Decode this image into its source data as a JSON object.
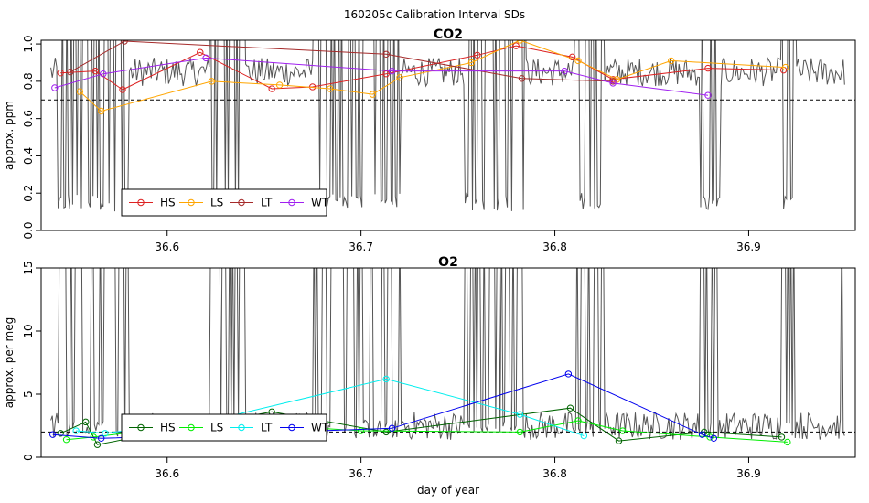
{
  "figure_title": "160205c   Calibration Interval SDs",
  "chart_data": [
    {
      "type": "line",
      "title": "CO2",
      "xlabel": "",
      "ylabel": "approx. ppm",
      "xlim": [
        36.535,
        36.955
      ],
      "ylim": [
        0.0,
        1.02
      ],
      "xticks": [
        "36.6",
        "36.7",
        "36.8",
        "36.9"
      ],
      "yticks": [
        "0.0",
        "0.2",
        "0.4",
        "0.6",
        "0.8",
        "1.0"
      ],
      "reference_line": 0.7,
      "background_trace": {
        "name": "raw",
        "color": "#555555",
        "x_range": [
          36.54,
          36.95
        ],
        "baseline": 0.85,
        "spike_clusters": [
          [
            36.543,
            36.58
          ],
          [
            36.622,
            36.64
          ],
          [
            36.675,
            36.72
          ],
          [
            36.753,
            36.785
          ],
          [
            36.81,
            36.825
          ],
          [
            36.875,
            36.885
          ],
          [
            36.917,
            36.924
          ]
        ]
      },
      "series": [
        {
          "name": "HS",
          "color": "#dd2222",
          "x": [
            36.545,
            36.563,
            36.577,
            36.617,
            36.654,
            36.675,
            36.713,
            36.76,
            36.78,
            36.809,
            36.83,
            36.879,
            36.918
          ],
          "y": [
            0.845,
            0.855,
            0.755,
            0.955,
            0.76,
            0.77,
            0.84,
            0.94,
            0.99,
            0.93,
            0.81,
            0.87,
            0.86
          ]
        },
        {
          "name": "LS",
          "color": "#ffa500",
          "x": [
            36.555,
            36.566,
            36.623,
            36.658,
            36.684,
            36.706,
            36.72,
            36.757,
            36.782,
            36.812,
            36.832,
            36.86,
            36.919
          ],
          "y": [
            0.745,
            0.64,
            0.8,
            0.78,
            0.76,
            0.73,
            0.82,
            0.9,
            1.02,
            0.91,
            0.81,
            0.91,
            0.875
          ]
        },
        {
          "name": "LT",
          "color": "#a52a2a",
          "x": [
            36.55,
            36.578,
            36.713,
            36.783,
            36.83
          ],
          "y": [
            0.85,
            1.015,
            0.945,
            0.815,
            0.8
          ]
        },
        {
          "name": "WT",
          "color": "#a020f0",
          "x": [
            36.542,
            36.567,
            36.62,
            36.716,
            36.805,
            36.83,
            36.879
          ],
          "y": [
            0.765,
            0.84,
            0.925,
            0.855,
            0.855,
            0.79,
            0.725
          ]
        }
      ],
      "legend": {
        "position": "bottom-left",
        "entries": [
          "HS",
          "LS",
          "LT",
          "WT"
        ]
      }
    },
    {
      "type": "line",
      "title": "O2",
      "xlabel": "day of year",
      "ylabel": "approx. per meg",
      "xlim": [
        36.535,
        36.955
      ],
      "ylim": [
        0,
        15
      ],
      "xticks": [
        "36.6",
        "36.7",
        "36.8",
        "36.9"
      ],
      "yticks": [
        "0",
        "5",
        "10",
        "15"
      ],
      "reference_line": 2,
      "background_trace": {
        "name": "raw",
        "color": "#555555",
        "x_range": [
          36.54,
          36.95
        ],
        "baseline": 2.5,
        "spike_clusters": [
          [
            36.543,
            36.58
          ],
          [
            36.622,
            36.64
          ],
          [
            36.675,
            36.72
          ],
          [
            36.753,
            36.785
          ],
          [
            36.81,
            36.825
          ],
          [
            36.875,
            36.885
          ],
          [
            36.917,
            36.924
          ],
          [
            36.947,
            36.952
          ]
        ]
      },
      "series": [
        {
          "name": "HS",
          "color": "#006400",
          "x": [
            36.545,
            36.558,
            36.564,
            36.625,
            36.654,
            36.713,
            36.808,
            36.833,
            36.877,
            36.917
          ],
          "y": [
            1.9,
            2.8,
            1.0,
            2.8,
            3.6,
            2.0,
            3.9,
            1.3,
            2.0,
            1.6
          ]
        },
        {
          "name": "LS",
          "color": "#00ee00",
          "x": [
            36.548,
            36.562,
            36.625,
            36.7,
            36.782,
            36.812,
            36.835,
            36.88,
            36.92
          ],
          "y": [
            1.4,
            1.6,
            2.8,
            2.1,
            2.0,
            2.9,
            2.1,
            1.6,
            1.2
          ]
        },
        {
          "name": "LT",
          "color": "#00eeee",
          "x": [
            36.553,
            36.568,
            36.625,
            36.713,
            36.782,
            36.815
          ],
          "y": [
            2.1,
            1.9,
            3.0,
            6.2,
            3.4,
            1.7
          ]
        },
        {
          "name": "WT",
          "color": "#0000ee",
          "x": [
            36.541,
            36.566,
            36.716,
            36.807,
            36.876,
            36.882
          ],
          "y": [
            1.8,
            1.5,
            2.3,
            6.6,
            1.8,
            1.5
          ]
        }
      ],
      "legend": {
        "position": "bottom-left",
        "entries": [
          "HS",
          "LS",
          "LT",
          "WT"
        ]
      }
    }
  ]
}
